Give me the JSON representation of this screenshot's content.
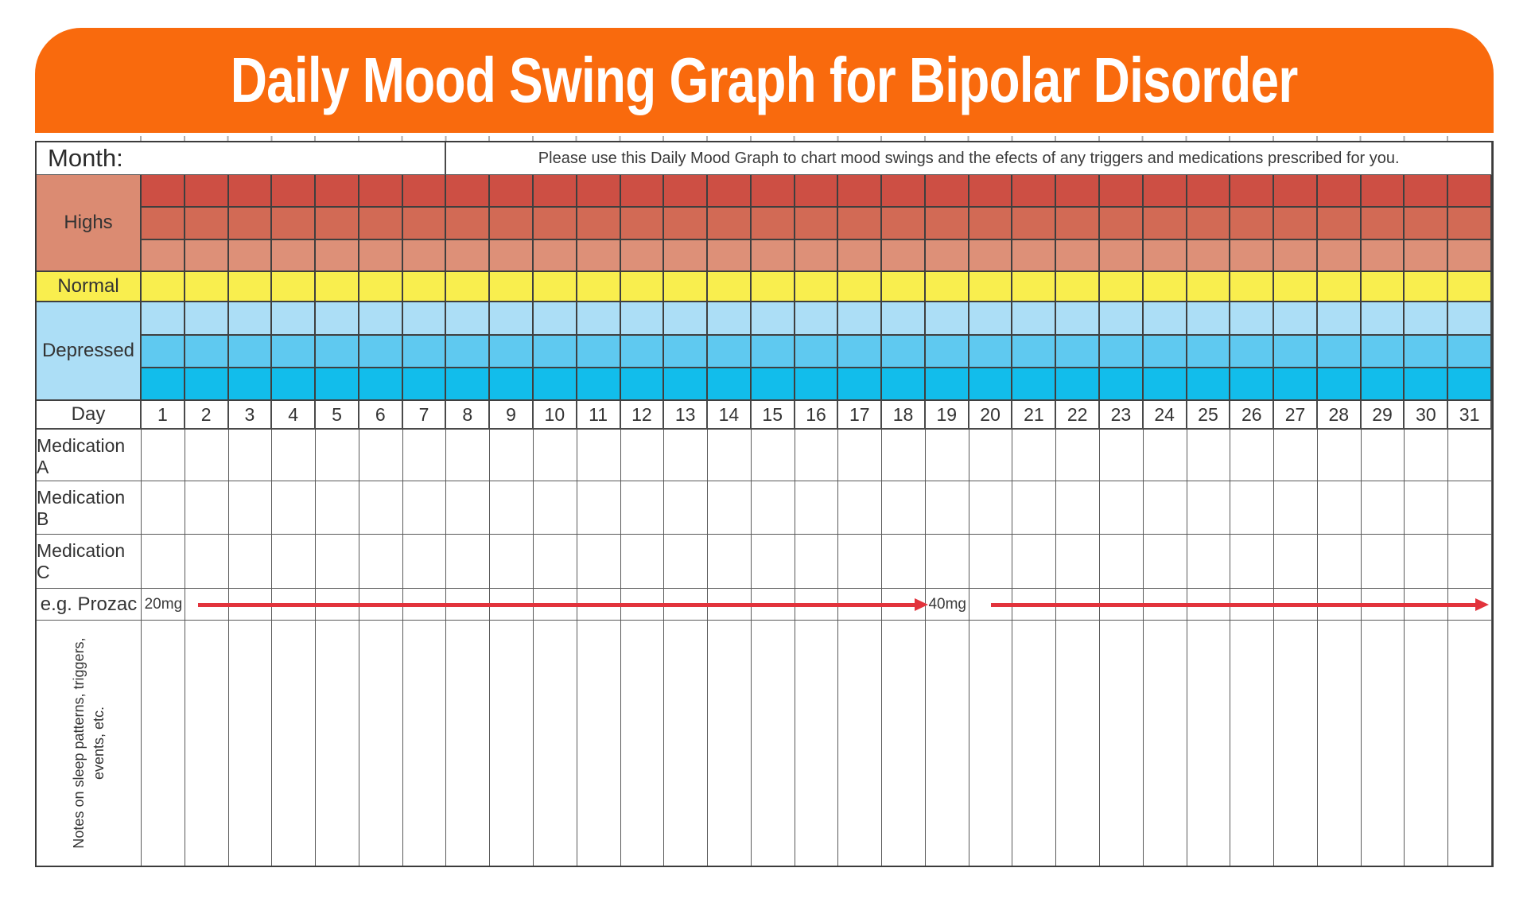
{
  "header": {
    "title": "Daily Mood Swing Graph for Bipolar Disorder",
    "bg_color": "#F96A0D",
    "text_color": "#FFFFFF"
  },
  "top_row": {
    "month_label": "Month:",
    "instruction": "Please use this Daily Mood Graph to chart mood swings and the efects of any triggers and medications prescribed for you."
  },
  "mood_scale": {
    "highs": {
      "label": "Highs",
      "label_bg": "#DB8B72",
      "band_colors": [
        "#CD4F44",
        "#D26A55",
        "#DD9078"
      ]
    },
    "normal": {
      "label": "Normal",
      "bg": "#F9EE4E"
    },
    "depressed": {
      "label": "Depressed",
      "label_bg": "#ACDEF6",
      "band_colors": [
        "#ACDEF6",
        "#5FC9F0",
        "#12BDEB"
      ]
    }
  },
  "day_row": {
    "label": "Day",
    "days": [
      "1",
      "2",
      "3",
      "4",
      "5",
      "6",
      "7",
      "8",
      "9",
      "10",
      "11",
      "12",
      "13",
      "14",
      "15",
      "16",
      "17",
      "18",
      "19",
      "20",
      "21",
      "22",
      "23",
      "24",
      "25",
      "26",
      "27",
      "28",
      "29",
      "30",
      "31"
    ]
  },
  "medication_rows": {
    "a": "Medication A",
    "b": "Medication B",
    "c": "Medication C"
  },
  "example_row": {
    "label": "e.g. Prozac",
    "dose1": "20mg",
    "dose2": "40mg",
    "arrow_color": "#E2333C"
  },
  "notes_row": {
    "line1": "Notes on sleep patterns, triggers,",
    "line2": "events, etc."
  },
  "grid": {
    "line_color": "#4a4a4a",
    "columns": 31
  }
}
